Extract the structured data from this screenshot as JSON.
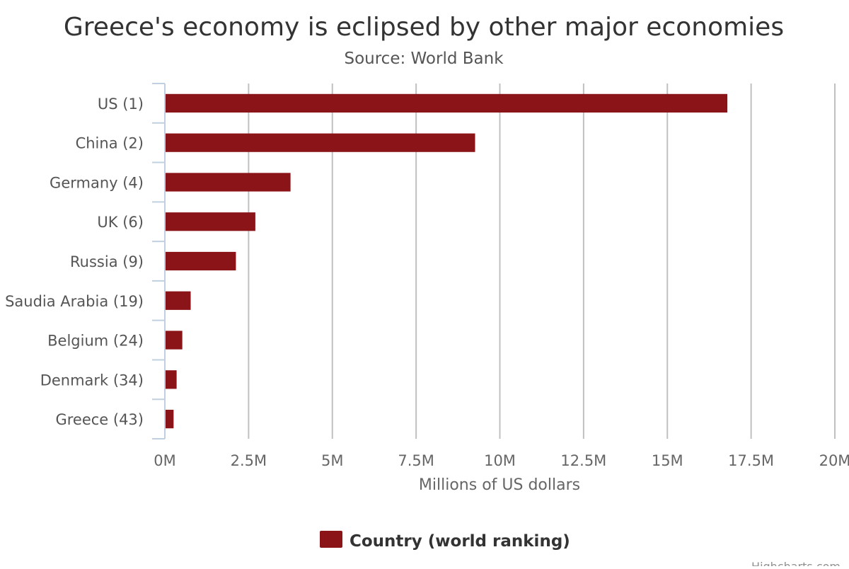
{
  "chart_data": {
    "type": "bar",
    "orientation": "horizontal",
    "title": "Greece's economy is eclipsed by other major economies",
    "subtitle": "Source: World Bank",
    "categories": [
      "US (1)",
      "China (2)",
      "Germany (4)",
      "UK (6)",
      "Russia (9)",
      "Saudia Arabia (19)",
      "Belgium (24)",
      "Denmark (34)",
      "Greece (43)"
    ],
    "series": [
      {
        "name": "Country (world ranking)",
        "values": [
          16770000,
          9240000,
          3730000,
          2680000,
          2100000,
          750000,
          500000,
          330000,
          240000
        ],
        "color": "#8b1418"
      }
    ],
    "xlabel": "Millions of US dollars",
    "ylabel": "",
    "xlim": [
      0,
      20000000
    ],
    "ticks": [
      0,
      2500000,
      5000000,
      7500000,
      10000000,
      12500000,
      15000000,
      17500000,
      20000000
    ],
    "tick_labels": [
      "0M",
      "2.5M",
      "5M",
      "7.5M",
      "10M",
      "12.5M",
      "15M",
      "17.5M",
      "20M"
    ],
    "grid": true,
    "legend_position": "bottom-center",
    "credits": "Highcharts.com"
  }
}
